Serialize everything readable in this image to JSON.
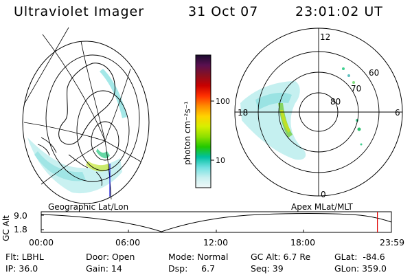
{
  "header": {
    "instrument": "Ultraviolet Imager",
    "date": "31 Oct 07",
    "time": "23:01:02 UT"
  },
  "left_panel": {
    "label": "Geographic Lat/Lon"
  },
  "right_panel": {
    "label": "Apex  MLat/MLT",
    "mlt_labels": {
      "top": "12",
      "left": "18",
      "right": "6",
      "bottom": "0"
    },
    "lat_labels": [
      "80",
      "70",
      "60"
    ]
  },
  "colorbar": {
    "unit_label": "photon cm⁻²s⁻¹",
    "ticks": [
      "100",
      "10"
    ],
    "colors": [
      "#1a0a2e",
      "#5a1050",
      "#8a1020",
      "#c80000",
      "#ff3000",
      "#ff8c00",
      "#ffd200",
      "#d7ef00",
      "#8ee000",
      "#22c800",
      "#00c0a0",
      "#70e0e0",
      "#c8f0f0",
      "#f0f8f8"
    ]
  },
  "timeline": {
    "axis_label": "GC Alt",
    "alt_max": "9.0",
    "alt_min": "1.8",
    "ticks": [
      "00:00",
      "06:00",
      "12:00",
      "18:00",
      "23:59"
    ],
    "current_time_fraction": 0.96
  },
  "info": {
    "flt": "Flt: LBHL",
    "ip": "IP: 36.0",
    "door": "Door: Open",
    "gain": "Gain: 14",
    "mode": "Mode: Normal",
    "dsp": "Dsp:     6.7",
    "gc_alt": "GC Alt: 6.7 Re",
    "seq": "Seq: 39",
    "glat": "GLat:  -84.6",
    "glon": "GLon: 359.0"
  }
}
